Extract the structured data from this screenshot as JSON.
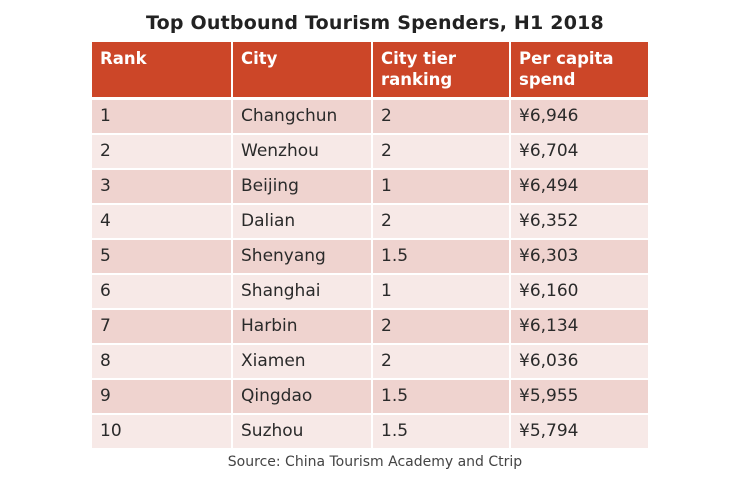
{
  "chart_data": {
    "type": "table",
    "title": "Top Outbound Tourism Spenders, H1 2018",
    "columns": [
      "Rank",
      "City",
      "City tier ranking",
      "Per capita spend"
    ],
    "rows": [
      {
        "rank": "1",
        "city": "Changchun",
        "tier": "2",
        "spend": "¥6,946"
      },
      {
        "rank": "2",
        "city": "Wenzhou",
        "tier": "2",
        "spend": "¥6,704"
      },
      {
        "rank": "3",
        "city": "Beijing",
        "tier": "1",
        "spend": "¥6,494"
      },
      {
        "rank": "4",
        "city": "Dalian",
        "tier": "2",
        "spend": "¥6,352"
      },
      {
        "rank": "5",
        "city": "Shenyang",
        "tier": "1.5",
        "spend": "¥6,303"
      },
      {
        "rank": "6",
        "city": "Shanghai",
        "tier": "1",
        "spend": "¥6,160"
      },
      {
        "rank": "7",
        "city": "Harbin",
        "tier": "2",
        "spend": "¥6,134"
      },
      {
        "rank": "8",
        "city": "Xiamen",
        "tier": "2",
        "spend": "¥6,036"
      },
      {
        "rank": "9",
        "city": "Qingdao",
        "tier": "1.5",
        "spend": "¥5,955"
      },
      {
        "rank": "10",
        "city": "Suzhou",
        "tier": "1.5",
        "spend": "¥5,794"
      }
    ],
    "source": "Source: China Tourism Academy and Ctrip"
  },
  "colors": {
    "header_bg": "#cc4628",
    "row_odd_bg": "#efd3cf",
    "row_even_bg": "#f7e9e7"
  }
}
